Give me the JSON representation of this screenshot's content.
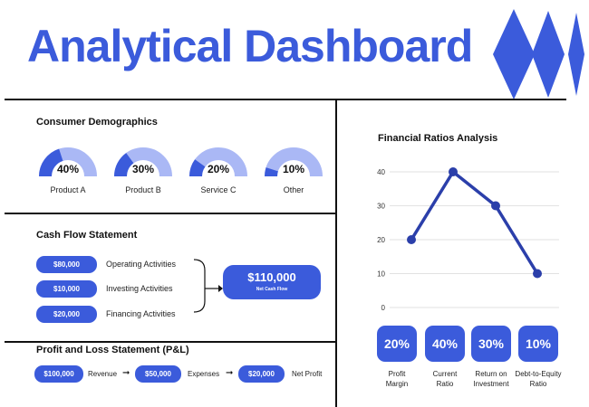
{
  "header": {
    "title": "Analytical Dashboard",
    "logo_icon": "blue-diamonds-logo-icon",
    "accent_color": "#3b5bdb",
    "light_color": "#aab8f5"
  },
  "demographics": {
    "title": "Consumer Demographics",
    "items": [
      {
        "label": "Product A",
        "percent_text": "40%",
        "value": 0.4
      },
      {
        "label": "Product B",
        "percent_text": "30%",
        "value": 0.3
      },
      {
        "label": "Service C",
        "percent_text": "20%",
        "value": 0.2
      },
      {
        "label": "Other",
        "percent_text": "10%",
        "value": 0.1
      }
    ]
  },
  "cash_flow": {
    "title": "Cash Flow Statement",
    "rows": [
      {
        "amount": "$80,000",
        "label": "Operating Activities"
      },
      {
        "amount": "$10,000",
        "label": "Investing Activities"
      },
      {
        "amount": "$20,000",
        "label": "Financing Activities"
      }
    ],
    "net_value": "$110,000",
    "net_label": "Net Cash Flow"
  },
  "pnl": {
    "title": "Profit and Loss Statement (P&L)",
    "revenue_amount": "$100,000",
    "revenue_label": "Revenue",
    "expenses_amount": "$50,000",
    "expenses_label": "Expenses",
    "net_amount": "$20,000",
    "net_label": "Net Profit"
  },
  "ratios": {
    "title": "Financial Ratios Analysis",
    "items": [
      {
        "percent_text": "20%",
        "label_line1": "Profit",
        "label_line2": "Margin"
      },
      {
        "percent_text": "40%",
        "label_line1": "Current",
        "label_line2": "Ratio"
      },
      {
        "percent_text": "30%",
        "label_line1": "Return on",
        "label_line2": "Investment"
      },
      {
        "percent_text": "10%",
        "label_line1": "Debt-to-Equity",
        "label_line2": "Ratio"
      }
    ]
  },
  "chart_data": {
    "type": "line",
    "title": "Financial Ratios Analysis",
    "categories": [
      "Profit Margin",
      "Current Ratio",
      "Return on Investment",
      "Debt-to-Equity Ratio"
    ],
    "values": [
      20,
      40,
      30,
      10
    ],
    "yticks": [
      0,
      10,
      20,
      30,
      40
    ],
    "ylim": [
      0,
      40
    ],
    "grid": true,
    "color": "#2b3faa"
  }
}
